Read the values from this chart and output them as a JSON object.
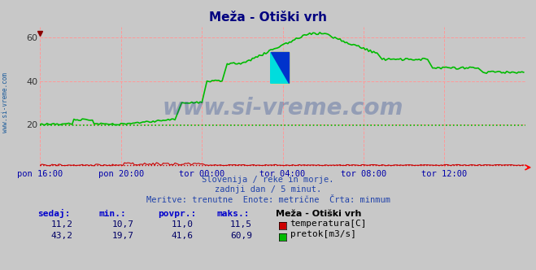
{
  "title": "Meža - Otiški vrh",
  "background_color": "#c8c8c8",
  "plot_bg_color": "#c8c8c8",
  "grid_color": "#ff9999",
  "x_label_color": "#0000aa",
  "subtitle_lines": [
    "Slovenija / reke in morje.",
    "zadnji dan / 5 minut.",
    "Meritve: trenutne  Enote: metrične  Črta: minmum"
  ],
  "xtick_labels": [
    "pon 16:00",
    "pon 20:00",
    "tor 00:00",
    "tor 04:00",
    "tor 08:00",
    "tor 12:00"
  ],
  "xtick_positions": [
    0,
    48,
    96,
    144,
    192,
    240
  ],
  "ytick_labels": [
    "20",
    "40",
    "60"
  ],
  "ytick_positions": [
    20,
    40,
    60
  ],
  "ymin": 0,
  "ymax": 65,
  "xmin": 0,
  "xmax": 288,
  "temp_color": "#cc0000",
  "flow_color": "#00bb00",
  "watermark_text": "www.si-vreme.com",
  "watermark_color": "#1a3a8a",
  "watermark_alpha": 0.3,
  "left_text": "www.si-vreme.com",
  "left_text_color": "#1a5a9a",
  "table_headers": [
    "sedaj:",
    "min.:",
    "povpr.:",
    "maks.:"
  ],
  "table_station": "Meža - Otiški vrh",
  "temp_values": [
    11.2,
    10.7,
    11.0,
    11.5
  ],
  "flow_values": [
    43.2,
    19.7,
    41.6,
    60.9
  ],
  "legend_temp": "temperatura[C]",
  "legend_flow": "pretok[m3/s]",
  "dpi": 100,
  "fig_width": 6.59,
  "fig_height": 3.32
}
